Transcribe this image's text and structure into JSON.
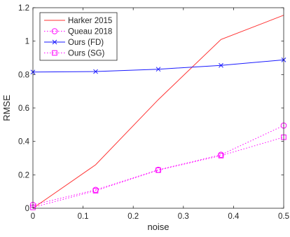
{
  "chart_data": {
    "type": "line",
    "title": "",
    "xlabel": "noise",
    "ylabel": "RMSE",
    "xlim": [
      0,
      0.5
    ],
    "ylim": [
      0,
      1.2
    ],
    "xticks": [
      0,
      0.1,
      0.2,
      0.3,
      0.4,
      0.5
    ],
    "yticks": [
      0,
      0.2,
      0.4,
      0.6,
      0.8,
      1,
      1.2
    ],
    "xtick_labels": [
      "0",
      "0.1",
      "0.2",
      "0.3",
      "0.4",
      "0.5"
    ],
    "ytick_labels": [
      "0",
      "0.2",
      "0.4",
      "0.6",
      "0.8",
      "1",
      "1.2"
    ],
    "grid": false,
    "legend_position": "top-left",
    "series": [
      {
        "name": "Harker 2015",
        "color": "#ff3333",
        "line_style": "solid",
        "marker": "none",
        "x": [
          0,
          0.125,
          0.25,
          0.375,
          0.5
        ],
        "y": [
          0,
          0.26,
          0.65,
          1.01,
          1.155
        ]
      },
      {
        "name": "Queau 2018",
        "color": "#ff00ff",
        "line_style": "dotted",
        "marker": "circle",
        "x": [
          0,
          0.125,
          0.25,
          0.375,
          0.5
        ],
        "y": [
          0.02,
          0.11,
          0.23,
          0.32,
          0.495
        ]
      },
      {
        "name": "Ours (FD)",
        "color": "#1a1aff",
        "line_style": "solid",
        "marker": "x",
        "x": [
          0,
          0.125,
          0.25,
          0.375,
          0.5
        ],
        "y": [
          0.815,
          0.818,
          0.832,
          0.855,
          0.888
        ]
      },
      {
        "name": "Ours (SG)",
        "color": "#ff00ff",
        "line_style": "dotted",
        "marker": "square",
        "x": [
          0,
          0.125,
          0.25,
          0.375,
          0.5
        ],
        "y": [
          0.005,
          0.105,
          0.228,
          0.315,
          0.425
        ]
      }
    ]
  }
}
